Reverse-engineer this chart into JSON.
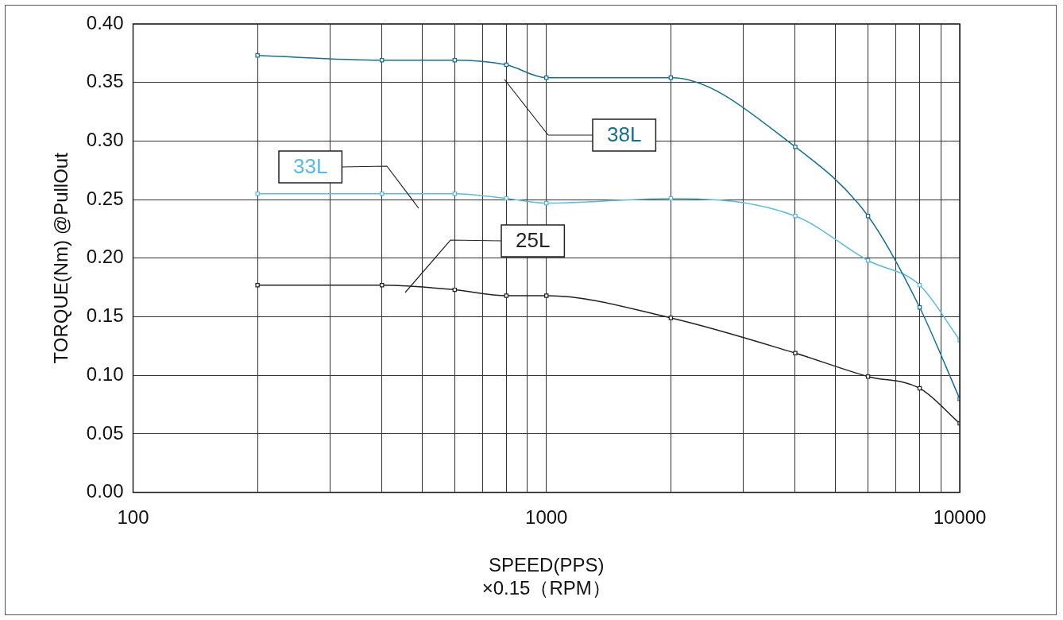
{
  "chart_data": {
    "type": "line",
    "xlabel": "SPEED(PPS)\n×0.15（RPM）",
    "ylabel": "TORQUE(Nm) @PullOut",
    "log": "x",
    "x": [
      200,
      400,
      600,
      800,
      1000,
      2000,
      4000,
      6000,
      8000,
      10000
    ],
    "series": [
      {
        "name": "38L",
        "color": "#17708f",
        "values": [
          0.373,
          0.369,
          0.369,
          0.365,
          0.354,
          0.354,
          0.295,
          0.236,
          0.158,
          0.08
        ]
      },
      {
        "name": "33L",
        "color": "#5cb9e0",
        "values": [
          0.255,
          0.255,
          0.255,
          0.251,
          0.247,
          0.251,
          0.236,
          0.198,
          0.177,
          0.13
        ]
      },
      {
        "name": "25L",
        "color": "#222222",
        "values": [
          0.177,
          0.177,
          0.173,
          0.168,
          0.168,
          0.149,
          0.119,
          0.099,
          0.089,
          0.059
        ]
      }
    ],
    "xlim": [
      100,
      10000
    ],
    "xticks": [
      100,
      {
        "value": 200,
        "label": null
      },
      {
        "value": 300,
        "label": null
      },
      {
        "value": 400,
        "label": null
      },
      {
        "value": 500,
        "label": null
      },
      {
        "value": 600,
        "label": null
      },
      {
        "value": 700,
        "label": null
      },
      {
        "value": 800,
        "label": null
      },
      {
        "value": 900,
        "label": null
      },
      1000,
      {
        "value": 2000,
        "label": null
      },
      {
        "value": 3000,
        "label": null
      },
      {
        "value": 4000,
        "label": null
      },
      {
        "value": 5000,
        "label": null
      },
      {
        "value": 6000,
        "label": null
      },
      {
        "value": 7000,
        "label": null
      },
      {
        "value": 8000,
        "label": null
      },
      {
        "value": 9000,
        "label": null
      },
      10000
    ],
    "ylim": [
      0,
      0.4
    ],
    "yticks": [
      {
        "value": 0,
        "label": "0.00"
      },
      {
        "value": 0.05,
        "label": "0.05"
      },
      {
        "value": 0.1,
        "label": "0.10"
      },
      {
        "value": 0.15,
        "label": "0.15"
      },
      {
        "value": 0.2,
        "label": "0.20"
      },
      {
        "value": 0.25,
        "label": "0.25"
      },
      {
        "value": 0.3,
        "label": "0.30"
      },
      {
        "value": 0.35,
        "label": "0.35"
      },
      {
        "value": 0.4,
        "label": "0.40"
      }
    ],
    "grid": true,
    "marker": "square",
    "line_style": "solid",
    "legend": false
  }
}
